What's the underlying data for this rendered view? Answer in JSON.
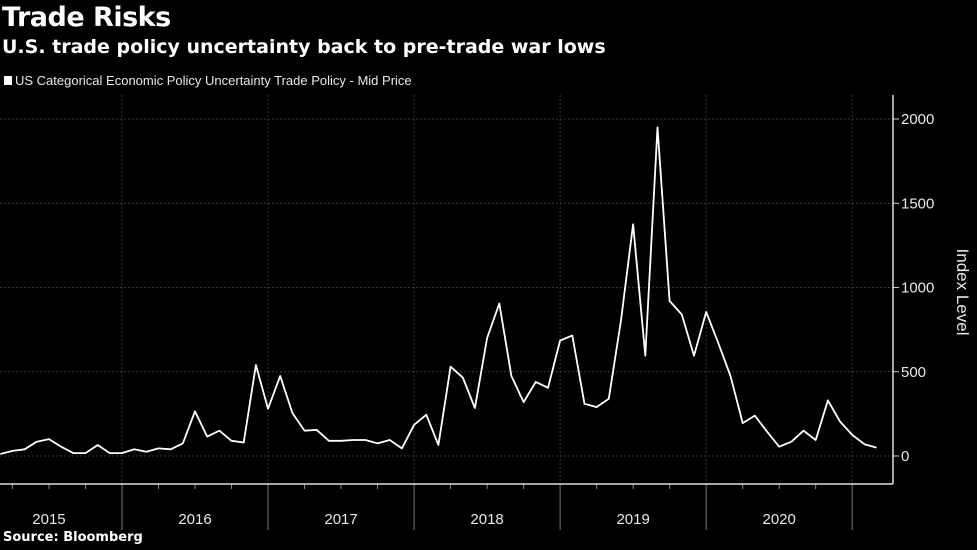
{
  "title": "Trade Risks",
  "subtitle": "U.S. trade policy uncertainty back to pre-trade war lows",
  "source": "Source: Bloomberg",
  "chart_data": {
    "type": "line",
    "title": "Trade Risks",
    "subtitle": "U.S. trade policy uncertainty back to pre-trade war lows",
    "ylabel": "Index Level",
    "xlabel": "",
    "ylim": [
      -166,
      2142
    ],
    "yticks": [
      0,
      500,
      1000,
      1500,
      2000
    ],
    "xtick_labels": [
      "2015",
      "2016",
      "2017",
      "2018",
      "2019",
      "2020"
    ],
    "grid": true,
    "legend_position": "top-left",
    "line_color": "#ffffff",
    "background": "#000000",
    "series": [
      {
        "name": "US Categorical Economic Policy Uncertainty Trade Policy - Mid Price",
        "start": "2015-03",
        "frequency": "monthly",
        "values": [
          12,
          30,
          40,
          85,
          100,
          55,
          17,
          17,
          65,
          17,
          17,
          40,
          25,
          45,
          40,
          75,
          265,
          115,
          150,
          90,
          80,
          540,
          280,
          475,
          255,
          150,
          155,
          90,
          90,
          95,
          95,
          75,
          95,
          45,
          185,
          245,
          65,
          530,
          465,
          285,
          700,
          905,
          475,
          320,
          440,
          405,
          685,
          715,
          310,
          290,
          340,
          805,
          1375,
          595,
          1950,
          920,
          840,
          595,
          855,
          670,
          475,
          195,
          240,
          145,
          55,
          85,
          150,
          95,
          330,
          205,
          125,
          70,
          50
        ]
      }
    ]
  }
}
